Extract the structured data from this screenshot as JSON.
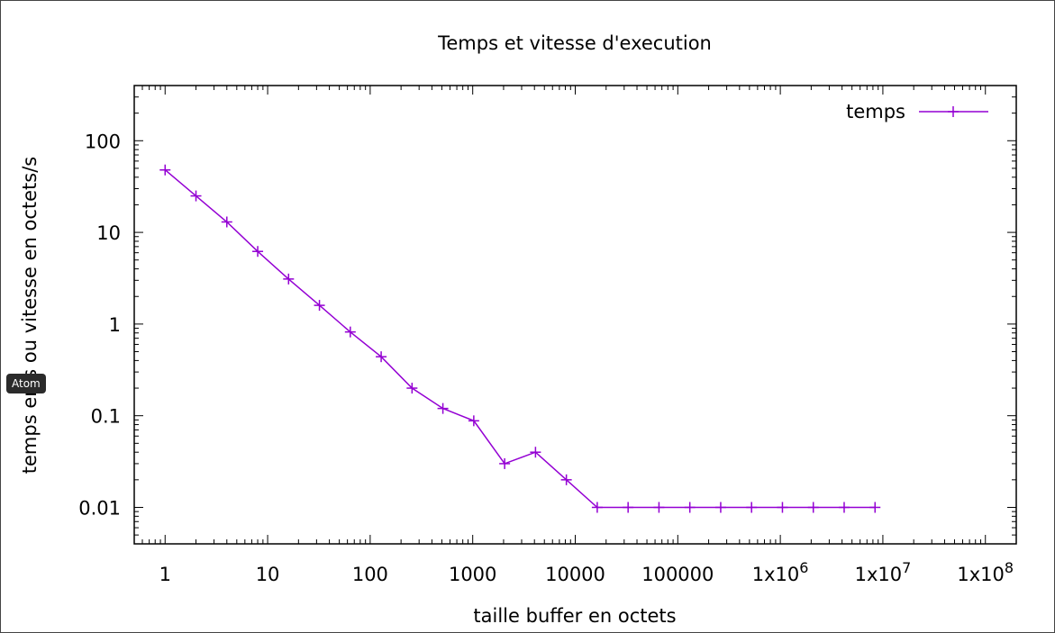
{
  "chart_data": {
    "type": "line",
    "title": "Temps et vitesse d'execution",
    "xlabel": "taille buffer en octets",
    "ylabel": "temps en s ou vitesse en octets/s",
    "xscale": "log",
    "yscale": "log",
    "xlim": [
      0.5,
      200000000
    ],
    "ylim": [
      0.004,
      400
    ],
    "xticks": [
      1,
      10,
      100,
      1000,
      10000,
      100000,
      1000000,
      10000000,
      100000000
    ],
    "xtick_labels": [
      {
        "base": "1",
        "exp": ""
      },
      {
        "base": "10",
        "exp": ""
      },
      {
        "base": "100",
        "exp": ""
      },
      {
        "base": "1000",
        "exp": ""
      },
      {
        "base": "10000",
        "exp": ""
      },
      {
        "base": "100000",
        "exp": ""
      },
      {
        "base": "1x10",
        "exp": "6"
      },
      {
        "base": "1x10",
        "exp": "7"
      },
      {
        "base": "1x10",
        "exp": "8"
      }
    ],
    "yticks": [
      0.01,
      0.1,
      1,
      10,
      100
    ],
    "ytick_labels": [
      "0.01",
      "0.1",
      "1",
      "10",
      "100"
    ],
    "legend_position": "top-right",
    "series": [
      {
        "name": "temps",
        "color": "#9400d3",
        "marker": "plus",
        "x": [
          1,
          2,
          4,
          8,
          16,
          32,
          64,
          128,
          256,
          512,
          1024,
          2048,
          4096,
          8192,
          16384,
          32768,
          65536,
          131072,
          262144,
          524288,
          1048576,
          2097152,
          4194304,
          8388608
        ],
        "y": [
          48,
          25,
          13,
          6.2,
          3.1,
          1.6,
          0.82,
          0.44,
          0.2,
          0.12,
          0.088,
          0.03,
          0.04,
          0.02,
          0.01,
          0.01,
          0.01,
          0.01,
          0.01,
          0.01,
          0.01,
          0.01,
          0.01,
          0.01
        ]
      }
    ]
  },
  "tooltip": {
    "label": "Atom"
  }
}
